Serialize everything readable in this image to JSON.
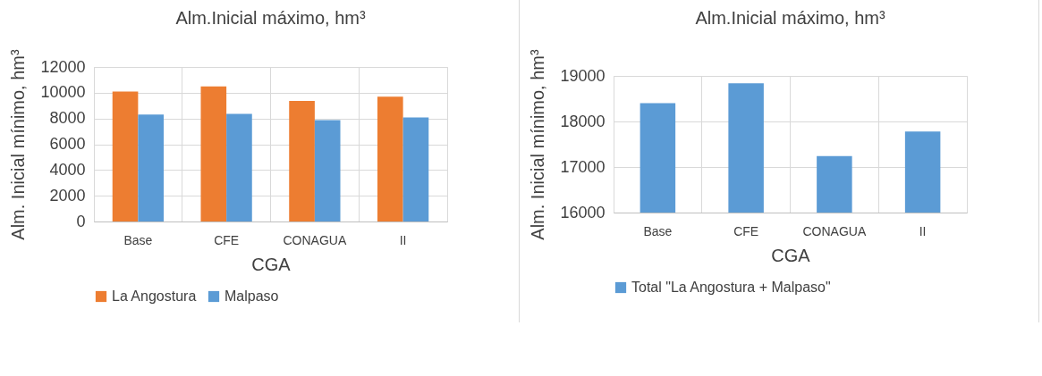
{
  "chart_data": [
    {
      "type": "bar",
      "title": "Alm.Inicial máximo, hm³",
      "xlabel": "CGA",
      "ylabel": "Alm. Inicial mínimo, hm³",
      "categories": [
        "Base",
        "CFE",
        "CONAGUA",
        "II"
      ],
      "series": [
        {
          "name": "La Angostura",
          "color": "#ed7d31",
          "values": [
            10100,
            10500,
            9370,
            9690
          ]
        },
        {
          "name": "Malpaso",
          "color": "#5b9bd5",
          "values": [
            8300,
            8350,
            7870,
            8080
          ]
        }
      ],
      "ylim": [
        0,
        12000
      ],
      "yticks": [
        0,
        2000,
        4000,
        6000,
        8000,
        10000,
        12000
      ],
      "grid": true,
      "legend": "bottom"
    },
    {
      "type": "bar",
      "title": "Alm.Inicial máximo, hm³",
      "xlabel": "CGA",
      "ylabel": "Alm. Inicial mínimo, hm³",
      "categories": [
        "Base",
        "CFE",
        "CONAGUA",
        "II"
      ],
      "series": [
        {
          "name": "Total \"La Angostura + Malpaso\"",
          "color": "#5b9bd5",
          "values": [
            18400,
            18840,
            17240,
            17780
          ]
        }
      ],
      "ylim": [
        16000,
        19000
      ],
      "yticks": [
        16000,
        17000,
        18000,
        19000
      ],
      "grid": true,
      "legend": "bottom"
    }
  ]
}
